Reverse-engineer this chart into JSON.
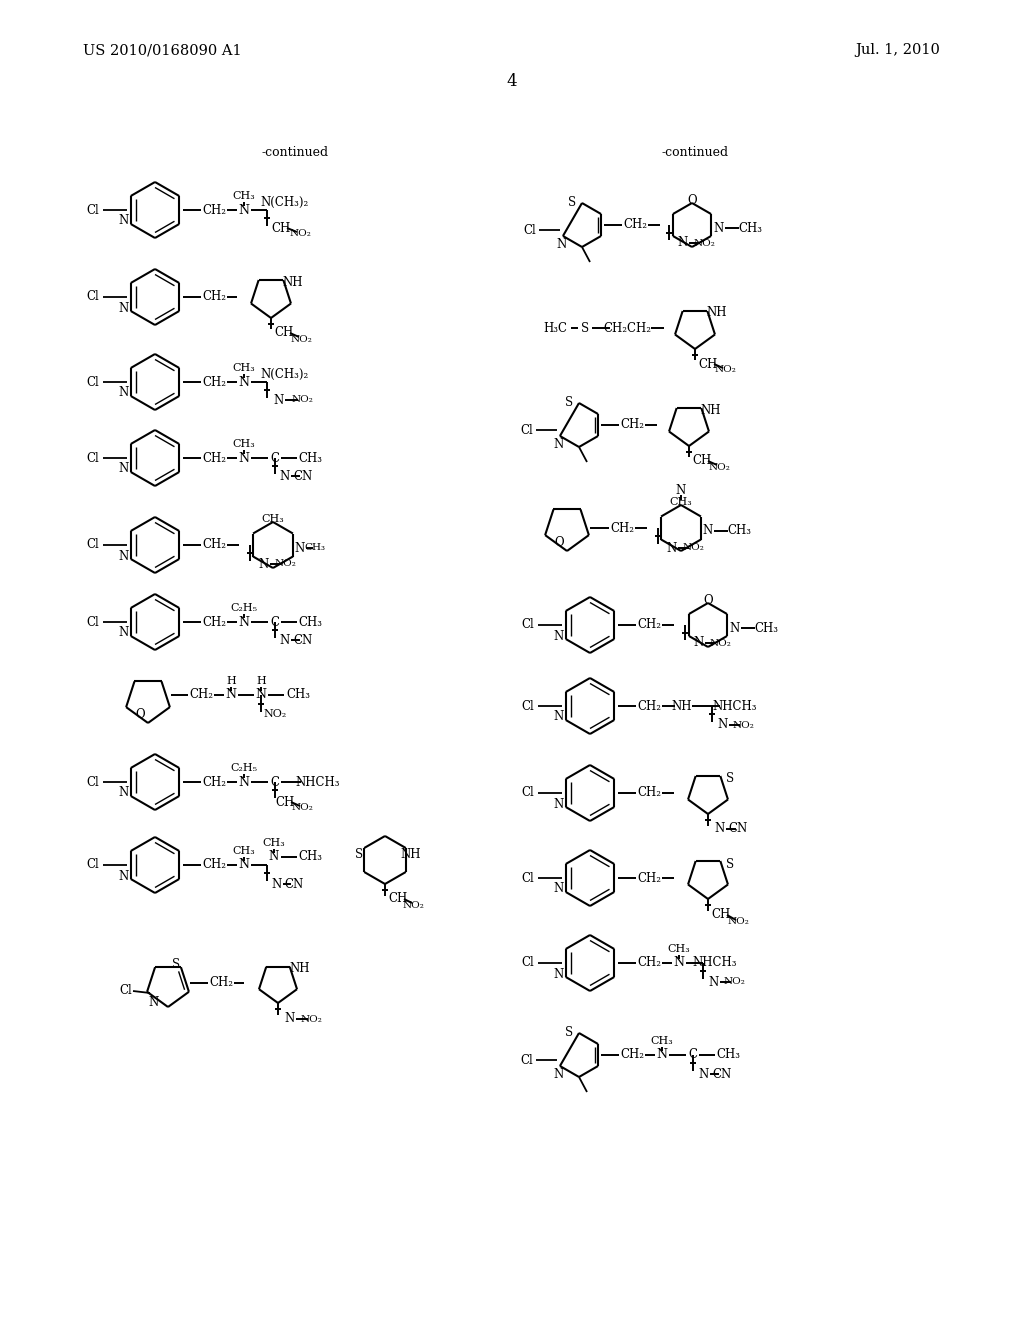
{
  "patent_number": "US 2010/0168090 A1",
  "patent_date": "Jul. 1, 2010",
  "page_number": "4",
  "continued": "-continued"
}
